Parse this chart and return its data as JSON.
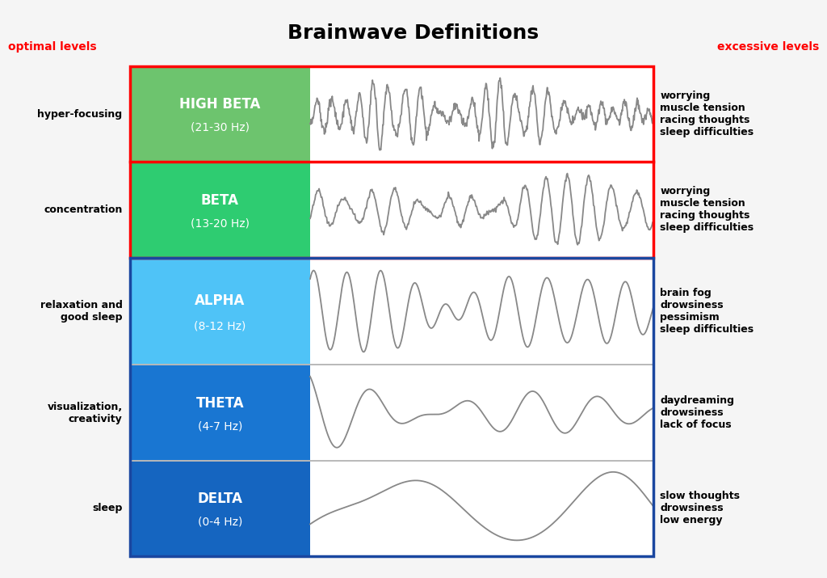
{
  "title": "Brainwave Definitions",
  "title_fontsize": 18,
  "title_fontweight": "bold",
  "optimal_label": "optimal levels",
  "excessive_label": "excessive levels",
  "label_color": "#FF0000",
  "waves": [
    {
      "name": "HIGH BETA",
      "freq": "(21-30 Hz)",
      "color": "#6DC46E",
      "left_text": "hyper-focusing",
      "right_text": "worrying\nmuscle tension\nracing thoughts\nsleep difficulties",
      "row_weight": 1.6
    },
    {
      "name": "BETA",
      "freq": "(13-20 Hz)",
      "color": "#2ECC71",
      "left_text": "concentration",
      "right_text": "worrying\nmuscle tension\nracing thoughts\nsleep difficulties",
      "row_weight": 1.6
    },
    {
      "name": "ALPHA",
      "freq": "(8-12 Hz)",
      "color": "#4FC3F7",
      "left_text": "relaxation and\ngood sleep",
      "right_text": "brain fog\ndrowsiness\npessimism\nsleep difficulties",
      "row_weight": 1.8
    },
    {
      "name": "THETA",
      "freq": "(4-7 Hz)",
      "color": "#1976D2",
      "left_text": "visualization,\ncreativity",
      "right_text": "daydreaming\ndrowsiness\nlack of focus",
      "row_weight": 1.6
    },
    {
      "name": "DELTA",
      "freq": "(0-4 Hz)",
      "color": "#1565C0",
      "left_text": "sleep",
      "right_text": "slow thoughts\ndrowsiness\nlow energy",
      "row_weight": 1.6
    }
  ],
  "background_color": "#F5F5F5",
  "wave_color": "#888888",
  "wave_linewidth": 1.3,
  "red_border_color": "#FF0000",
  "blue_border_color": "#1A47A0",
  "border_linewidth": 2.5,
  "divider_color": "#AAAAAA",
  "divider_linewidth": 1.2
}
